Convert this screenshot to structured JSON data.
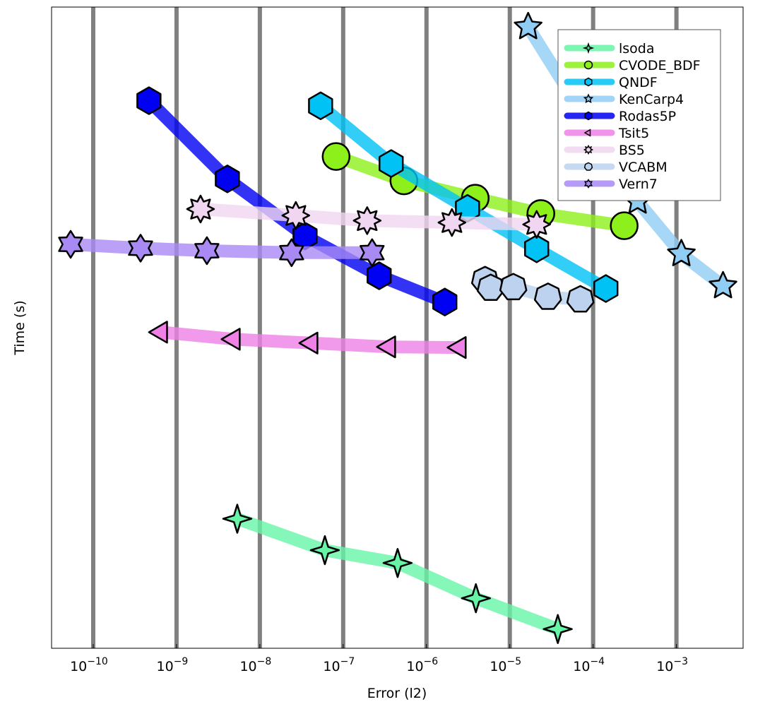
{
  "chart_data": {
    "type": "line",
    "title": "",
    "xlabel": "Error (l2)",
    "ylabel": "Time (s)",
    "xscale": "log",
    "x_is_log10": true,
    "xlim_log10": [
      -10.5,
      -2.2
    ],
    "ylim": [
      0,
      100
    ],
    "y_units_note": "relative",
    "grid": "vertical",
    "legend_position": "top-right",
    "x_tick_labels": [
      {
        "base": "10",
        "exp": "−10",
        "log10": -10
      },
      {
        "base": "10",
        "exp": "−9",
        "log10": -9
      },
      {
        "base": "10",
        "exp": "−8",
        "log10": -8
      },
      {
        "base": "10",
        "exp": "−7",
        "log10": -7
      },
      {
        "base": "10",
        "exp": "−6",
        "log10": -6
      },
      {
        "base": "10",
        "exp": "−5",
        "log10": -5
      },
      {
        "base": "10",
        "exp": "−4",
        "log10": -4
      },
      {
        "base": "10",
        "exp": "−3",
        "log10": -3
      }
    ],
    "series": [
      {
        "name": "lsoda",
        "color": "#66f5a6",
        "marker": "star4",
        "x": [
          -8.271,
          -7.22,
          -6.347,
          -5.407,
          -4.424
        ],
        "y": [
          20.2,
          15.3,
          13.3,
          7.8,
          3.0
        ]
      },
      {
        "name": "CVODE_BDF",
        "color": "#8df01a",
        "marker": "circle",
        "x": [
          -7.085,
          -6.271,
          -5.415,
          -4.627,
          -3.627
        ],
        "y": [
          76.7,
          72.9,
          70.2,
          67.8,
          65.9
        ]
      },
      {
        "name": "QNDF",
        "color": "#00c2f5",
        "marker": "hexagon",
        "x": [
          -7.271,
          -6.424,
          -5.508,
          -4.678,
          -3.847
        ],
        "y": [
          84.6,
          75.6,
          68.6,
          62.3,
          56.1
        ]
      },
      {
        "name": "KenCarp4",
        "color": "#90cdf5",
        "marker": "star5",
        "x": [
          -4.78,
          -3.466,
          -2.941,
          -2.441
        ],
        "y": [
          96.9,
          69.7,
          61.5,
          56.5
        ]
      },
      {
        "name": "Rodas5P",
        "color": "#0000f2",
        "marker": "hexagon",
        "x": [
          -9.331,
          -8.39,
          -7.458,
          -6.568,
          -5.78
        ],
        "y": [
          85.4,
          73.2,
          64.3,
          58.1,
          54.0
        ]
      },
      {
        "name": "Tsit5",
        "color": "#ee80e6",
        "marker": "triangle-left",
        "x": [
          -9.186,
          -8.314,
          -7.381,
          -6.449,
          -5.602
        ],
        "y": [
          49.3,
          48.2,
          47.6,
          47.0,
          46.9
        ]
      },
      {
        "name": "BS5",
        "color": "#f0d6f0",
        "marker": "star8",
        "x": [
          -8.712,
          -7.568,
          -6.712,
          -5.695,
          -4.678
        ],
        "y": [
          68.5,
          67.5,
          66.7,
          66.4,
          66.1
        ]
      },
      {
        "name": "VCABM",
        "color": "#bcd2ee",
        "marker": "heptagon",
        "x": [
          -5.297,
          -5.229,
          -4.958,
          -4.542,
          -4.153
        ],
        "y": [
          57.4,
          56.2,
          56.3,
          54.8,
          54.4
        ]
      },
      {
        "name": "Vern7",
        "color": "#a98af5",
        "marker": "star6",
        "x": [
          -10.271,
          -9.432,
          -8.636,
          -7.619,
          -6.653
        ],
        "y": [
          63.0,
          62.4,
          62.0,
          61.7,
          61.7
        ]
      }
    ]
  }
}
